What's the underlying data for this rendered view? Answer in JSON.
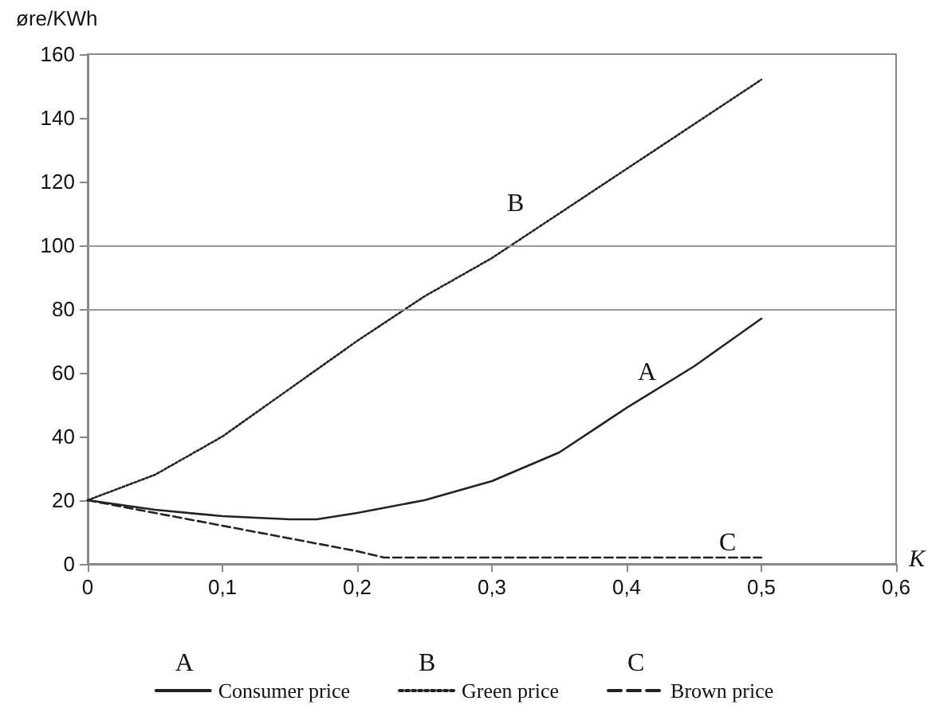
{
  "chart_data": {
    "type": "line",
    "ylabel": "øre/KWh",
    "xlabel": "K",
    "xlim": [
      0,
      0.6
    ],
    "xticks": [
      0,
      {
        "value": 0.1,
        "label": "0,1"
      },
      {
        "value": 0.2,
        "label": "0,2"
      },
      {
        "value": 0.3,
        "label": "0,3"
      },
      {
        "value": 0.4,
        "label": "0,4"
      },
      {
        "value": 0.5,
        "label": "0,5"
      },
      {
        "value": 0.6,
        "label": "0,6"
      }
    ],
    "ylim": [
      0,
      160
    ],
    "yticks": [
      0,
      20,
      40,
      60,
      80,
      100,
      120,
      140,
      160
    ],
    "grid": false,
    "legend": "bottom",
    "marker": "none",
    "ref_lines": [
      {
        "axis": "y",
        "value": 80,
        "color": "#999999"
      },
      {
        "axis": "y",
        "value": 100,
        "color": "#999999"
      }
    ],
    "annotations": [
      "A",
      "B",
      "C"
    ],
    "series": [
      {
        "name": "Consumer price",
        "color": "#222222",
        "line_style": "solid",
        "x": [
          0,
          0.05,
          0.1,
          0.15,
          0.17,
          0.2,
          0.25,
          0.3,
          0.35,
          0.4,
          0.45,
          0.5
        ],
        "values": [
          20,
          17,
          15,
          14,
          14,
          16,
          20,
          26,
          35,
          49,
          62,
          77
        ]
      },
      {
        "name": "Green price",
        "color": "#222222",
        "line_style": "dotted",
        "x": [
          0,
          0.05,
          0.1,
          0.15,
          0.2,
          0.25,
          0.3,
          0.35,
          0.4,
          0.45,
          0.5
        ],
        "values": [
          20,
          28,
          40,
          55,
          70,
          84,
          96,
          110,
          124,
          138,
          152
        ]
      },
      {
        "name": "Brown price",
        "color": "#222222",
        "line_style": "dashed",
        "x": [
          0,
          0.05,
          0.1,
          0.15,
          0.2,
          0.22,
          0.5
        ],
        "values": [
          20,
          16,
          12,
          8,
          4,
          2,
          2
        ]
      }
    ]
  }
}
